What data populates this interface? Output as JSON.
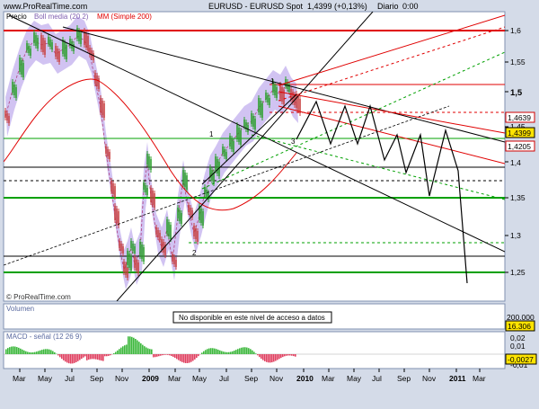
{
  "header": {
    "site": "www.ProRealTime.com",
    "instrument": "EURUSD - EURUSD Spot",
    "price": "1,4399 (+0,13%)",
    "period": "Diario",
    "time": "0:00"
  },
  "price_panel": {
    "legend_price": "Precio",
    "legend_boll": "Boll media (20 2)",
    "legend_mm": "MM (Simple 200)",
    "watermark": "© ProRealTime.com",
    "y_ticks": [
      "1,6",
      "1,55",
      "1,5",
      "1,45",
      "1,4",
      "1,35",
      "1,3",
      "1,25"
    ],
    "price_boxes": [
      {
        "text": "1,4639",
        "bg": "#ffffff",
        "color": "#d00000"
      },
      {
        "text": "1,4399",
        "bg": "#ffe400",
        "color": "#000000"
      },
      {
        "text": "1,4205",
        "bg": "#ffffff",
        "color": "#d00000"
      }
    ]
  },
  "volume_panel": {
    "title": "Volumen",
    "notice": "No disponible en este nivel de acceso a datos",
    "y_tick": "200.000",
    "value_box": "16.306"
  },
  "macd_panel": {
    "title": "MACD - señal (12 26 9)",
    "y_ticks": [
      "0,02",
      "0,01",
      "-0,01"
    ],
    "value_box": "-0,0027"
  },
  "x_axis": [
    "Mar",
    "May",
    "Jul",
    "Sep",
    "Nov",
    "2009",
    "Mar",
    "May",
    "Jul",
    "Sep",
    "Nov",
    "2010",
    "Mar",
    "May",
    "Jul",
    "Sep",
    "Nov",
    "2011",
    "Mar"
  ],
  "colors": {
    "background": "#d4dbe8",
    "plot": "#ffffff",
    "bollinger": "#c9b8f0",
    "red_line": "#e00000",
    "green_line": "#00a000",
    "bull_candle": "#2ca02c",
    "bear_candle": "#c84040",
    "macd_pos": "#3cb83c",
    "macd_neg": "#e04060"
  }
}
